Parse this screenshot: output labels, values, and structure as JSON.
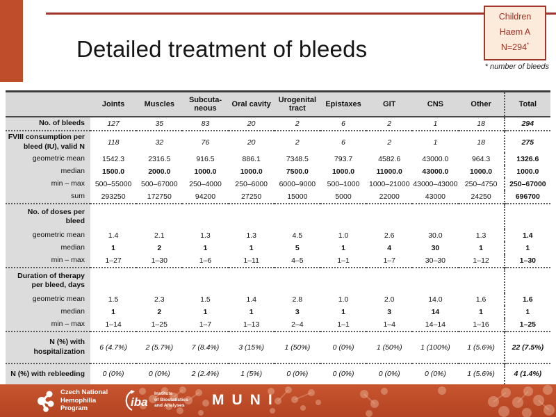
{
  "slide_title": "Detailed treatment of bleeds",
  "badge": {
    "line1": "Children",
    "line2": "Haem A",
    "n_value": "N=294",
    "star": "*"
  },
  "footnote": "* number of bleeds",
  "colors": {
    "accent": "#bf4c2a",
    "line": "#a2322a",
    "badge_bg": "#fceadb",
    "badge_border": "#a2352a",
    "badge_text": "#9c3026",
    "header_bg": "#d9d9d9",
    "label_bg": "#dcdcdc",
    "footer_top": "#c8552e",
    "footer_bottom": "#b34323"
  },
  "table": {
    "columns": [
      "Joints",
      "Muscles",
      "Subcuta-\nneous",
      "Oral cavity",
      "Urogenital\ntract",
      "Epistaxes",
      "GIT",
      "CNS",
      "Other",
      "Total"
    ],
    "rows": [
      {
        "label": "No. of bleeds",
        "label_bold": true,
        "value_style": "italic",
        "values": [
          "127",
          "35",
          "83",
          "20",
          "2",
          "6",
          "2",
          "1",
          "18",
          "294"
        ]
      },
      {
        "label": "FVIII consumption per bleed (IU), valid N",
        "label_bold": true,
        "value_style": "italic",
        "sep_above": true,
        "values": [
          "118",
          "32",
          "76",
          "20",
          "2",
          "6",
          "2",
          "1",
          "18",
          "275"
        ]
      },
      {
        "label": "geometric mean",
        "value_style": "normal",
        "values": [
          "1542.3",
          "2316.5",
          "916.5",
          "886.1",
          "7348.5",
          "793.7",
          "4582.6",
          "43000.0",
          "964.3",
          "1326.6"
        ]
      },
      {
        "label": "median",
        "value_style": "bold",
        "values": [
          "1500.0",
          "2000.0",
          "1000.0",
          "1000.0",
          "7500.0",
          "1000.0",
          "11000.0",
          "43000.0",
          "1000.0",
          "1000.0"
        ]
      },
      {
        "label": "min – max",
        "value_style": "normal",
        "values": [
          "500–55000",
          "500–67000",
          "250–4000",
          "250–6000",
          "6000–9000",
          "500–1000",
          "1000–21000",
          "43000–43000",
          "250–4750",
          "250–67000"
        ]
      },
      {
        "label": "sum",
        "value_style": "normal",
        "values": [
          "293250",
          "172750",
          "94200",
          "27250",
          "15000",
          "5000",
          "22000",
          "43000",
          "24250",
          "696700"
        ]
      },
      {
        "label": "No. of doses per bleed",
        "label_bold": true,
        "section": true,
        "sep_above": true,
        "values": [
          "",
          "",
          "",
          "",
          "",
          "",
          "",
          "",
          "",
          ""
        ]
      },
      {
        "label": "geometric mean",
        "value_style": "normal",
        "values": [
          "1.4",
          "2.1",
          "1.3",
          "1.3",
          "4.5",
          "1.0",
          "2.6",
          "30.0",
          "1.3",
          "1.4"
        ]
      },
      {
        "label": "median",
        "value_style": "bold",
        "values": [
          "1",
          "2",
          "1",
          "1",
          "5",
          "1",
          "4",
          "30",
          "1",
          "1"
        ]
      },
      {
        "label": "min – max",
        "value_style": "normal",
        "values": [
          "1–27",
          "1–30",
          "1–6",
          "1–11",
          "4–5",
          "1–1",
          "1–7",
          "30–30",
          "1–12",
          "1–30"
        ]
      },
      {
        "label": "Duration of therapy per bleed, days",
        "label_bold": true,
        "section": true,
        "sep_above": true,
        "values": [
          "",
          "",
          "",
          "",
          "",
          "",
          "",
          "",
          "",
          ""
        ]
      },
      {
        "label": "geometric mean",
        "value_style": "normal",
        "values": [
          "1.5",
          "2.3",
          "1.5",
          "1.4",
          "2.8",
          "1.0",
          "2.0",
          "14.0",
          "1.6",
          "1.6"
        ]
      },
      {
        "label": "median",
        "value_style": "bold",
        "values": [
          "1",
          "2",
          "1",
          "1",
          "3",
          "1",
          "3",
          "14",
          "1",
          "1"
        ]
      },
      {
        "label": "min – max",
        "value_style": "normal",
        "values": [
          "1–14",
          "1–25",
          "1–7",
          "1–13",
          "2–4",
          "1–1",
          "1–4",
          "14–14",
          "1–16",
          "1–25"
        ]
      },
      {
        "label": "N (%) with hospitalization",
        "label_bold": true,
        "value_style": "italic",
        "sep_above": true,
        "tall": true,
        "values": [
          "6 (4.7%)",
          "2 (5.7%)",
          "7 (8.4%)",
          "3 (15%)",
          "1 (50%)",
          "0 (0%)",
          "1 (50%)",
          "1 (100%)",
          "1 (5.6%)",
          "22 (7.5%)"
        ]
      },
      {
        "label": "N (%) with rebleeding",
        "label_bold": true,
        "value_style": "italic",
        "sep_above": true,
        "tall": true,
        "values": [
          "0 (0%)",
          "0 (0%)",
          "2 (2.4%)",
          "1 (5%)",
          "0 (0%)",
          "0 (0%)",
          "0 (0%)",
          "0 (0%)",
          "1 (5.6%)",
          "4 (1.4%)"
        ]
      }
    ]
  },
  "footer": {
    "cnhp_lines": [
      "Czech National",
      "Hemophilia",
      "Program"
    ],
    "iba_word": "iba",
    "iba_lines": [
      "Institute",
      "of Biostatistics",
      "and Analyses"
    ],
    "muni": "MUNI"
  }
}
